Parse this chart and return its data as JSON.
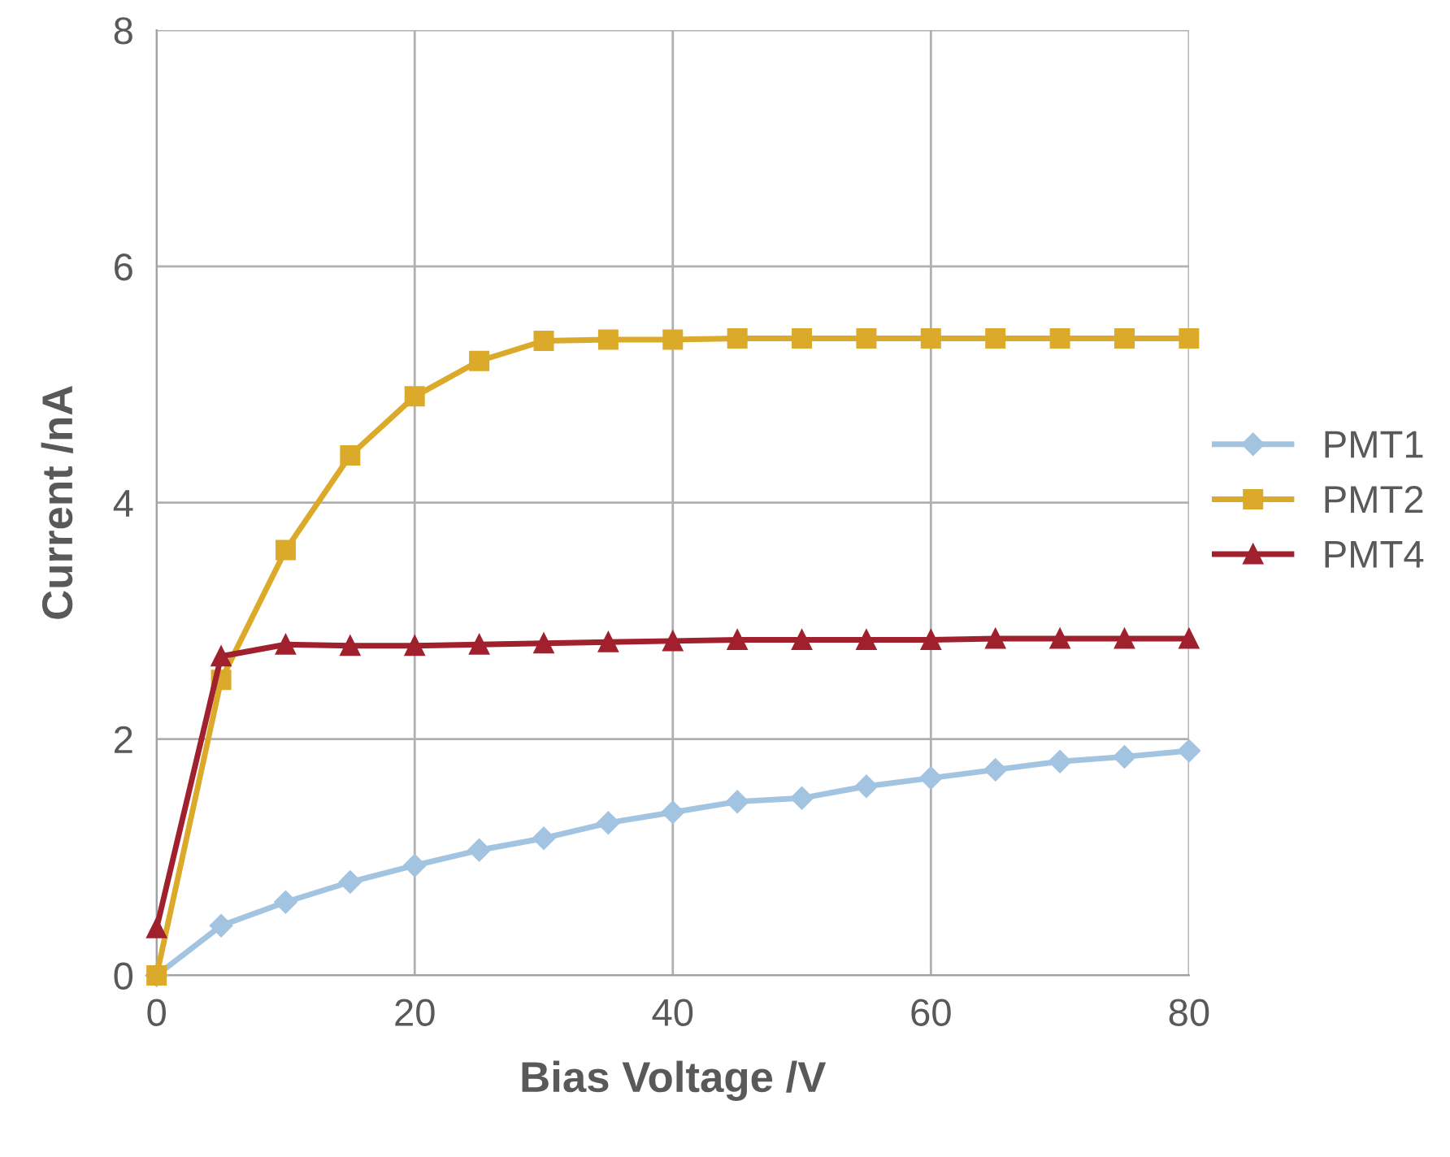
{
  "chart_data": {
    "type": "line",
    "xlabel": "Bias Voltage /V",
    "ylabel": "Current /nA",
    "x": [
      0,
      5,
      10,
      15,
      20,
      25,
      30,
      35,
      40,
      45,
      50,
      55,
      60,
      65,
      70,
      75,
      80
    ],
    "series": [
      {
        "name": "PMT1",
        "color": "#a3c4e0",
        "marker": "diamond",
        "values": [
          0,
          0.42,
          0.62,
          0.79,
          0.93,
          1.06,
          1.16,
          1.29,
          1.38,
          1.47,
          1.5,
          1.6,
          1.67,
          1.74,
          1.81,
          1.85,
          1.9
        ]
      },
      {
        "name": "PMT2",
        "color": "#dcaa2a",
        "marker": "square",
        "values": [
          0,
          2.5,
          3.6,
          4.4,
          4.9,
          5.2,
          5.37,
          5.38,
          5.38,
          5.39,
          5.39,
          5.39,
          5.39,
          5.39,
          5.39,
          5.39,
          5.39
        ]
      },
      {
        "name": "PMT4",
        "color": "#a0202e",
        "marker": "triangle",
        "values": [
          0.4,
          2.7,
          2.8,
          2.79,
          2.79,
          2.8,
          2.81,
          2.82,
          2.83,
          2.84,
          2.84,
          2.84,
          2.84,
          2.85,
          2.85,
          2.85,
          2.85
        ]
      }
    ],
    "xlim": [
      0,
      80
    ],
    "xticks": [
      0,
      20,
      40,
      60,
      80
    ],
    "ylim": [
      0,
      8
    ],
    "yticks": [
      0,
      2,
      4,
      6,
      8
    ],
    "grid": true,
    "legend": "right",
    "line_style": "solid"
  }
}
